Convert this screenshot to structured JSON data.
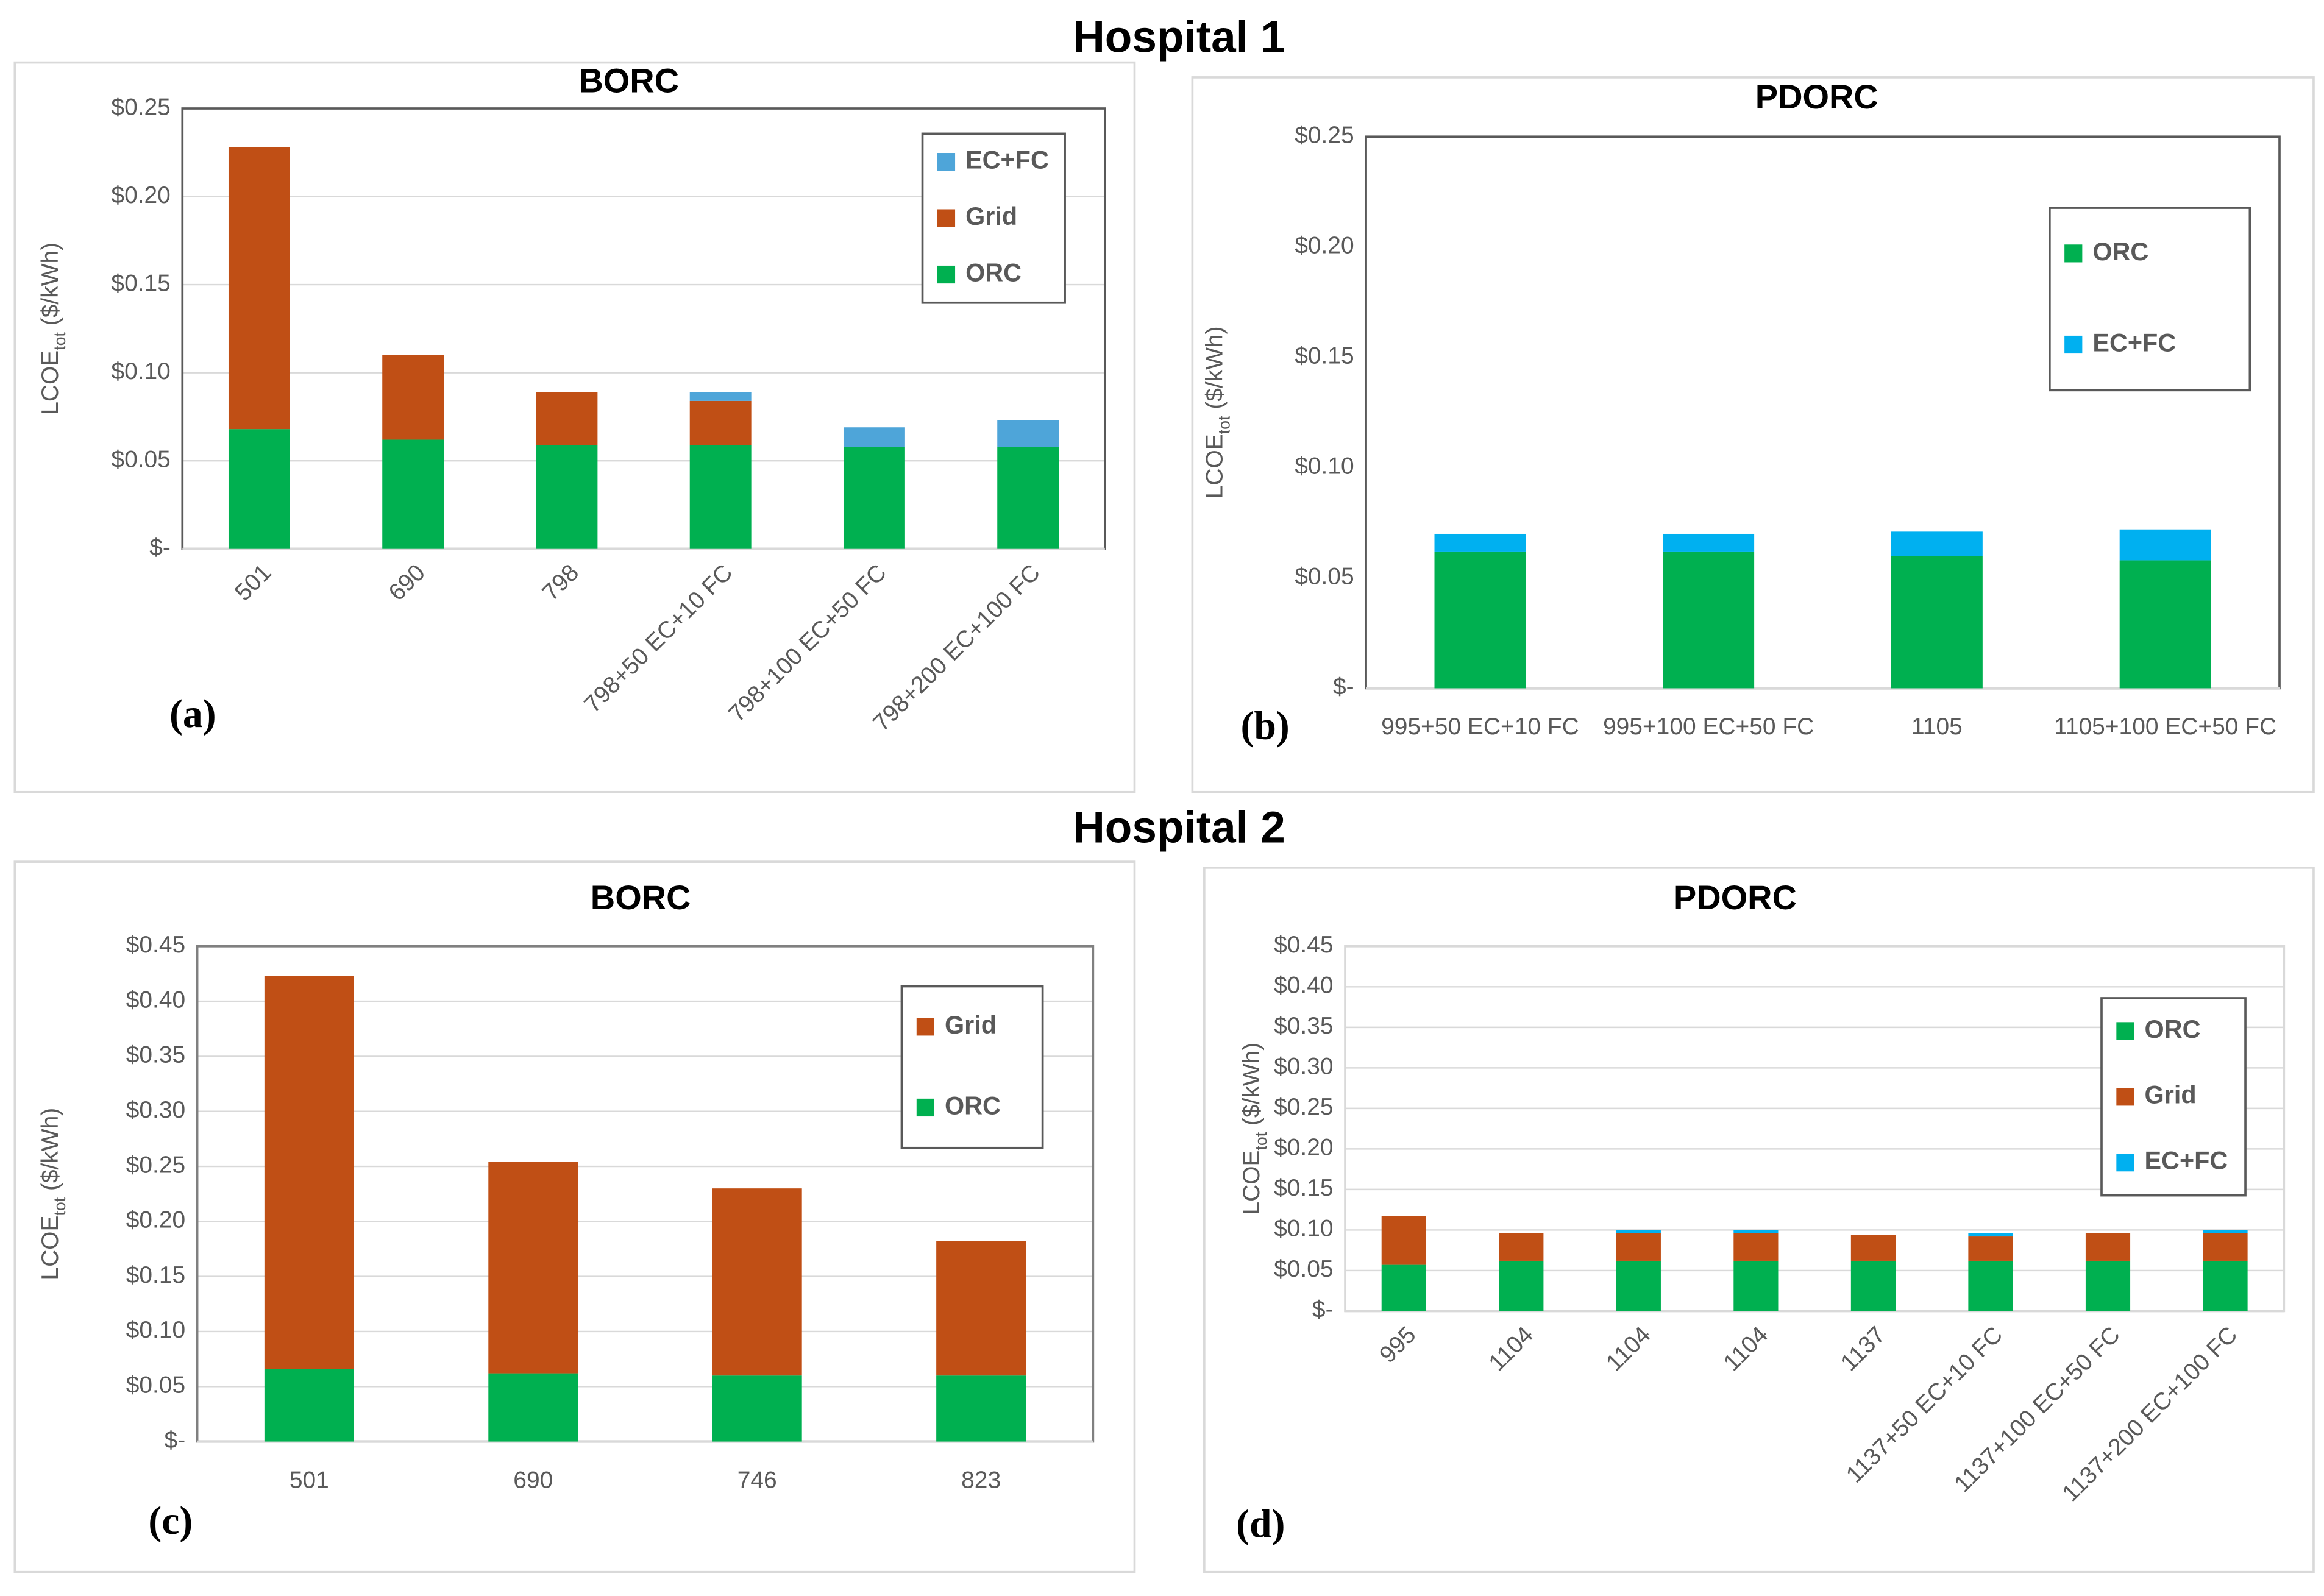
{
  "headings": [
    "Hospital 1",
    "Hospital 2"
  ],
  "chart_data": [
    {
      "type": "bar",
      "title": "BORC",
      "panel": "(a)",
      "ylabel": [
        "LCOE",
        "tot",
        " ($/kWh)"
      ],
      "categories": [
        "501",
        "690",
        "798",
        "798+50 EC+10 FC",
        "798+100 EC+50 FC",
        "798+200 EC+100 FC"
      ],
      "series": [
        {
          "name": "ORC",
          "color": "#00b050",
          "values": [
            0.068,
            0.062,
            0.059,
            0.059,
            0.058,
            0.058
          ]
        },
        {
          "name": "Grid",
          "color": "#c04f15",
          "values": [
            0.16,
            0.048,
            0.03,
            0.025,
            0,
            0
          ]
        },
        {
          "name": "EC+FC",
          "color": "#4ea5d9",
          "values": [
            0,
            0,
            0,
            0.005,
            0.011,
            0.015
          ]
        }
      ],
      "ylim": [
        0,
        0.25
      ],
      "yticks": [
        {
          "value": 0,
          "label": "$-"
        },
        {
          "value": 0.05,
          "label": "$0.05"
        },
        {
          "value": 0.1,
          "label": "$0.10"
        },
        {
          "value": 0.15,
          "label": "$0.15"
        },
        {
          "value": 0.2,
          "label": "$0.20"
        },
        {
          "value": 0.25,
          "label": "$0.25"
        }
      ],
      "grid": true,
      "legend_reversed": true,
      "legend": "upper right"
    },
    {
      "type": "bar",
      "title": "PDORC",
      "panel": "(b)",
      "ylabel": [
        "LCOE",
        "tot",
        " ($/kWh)"
      ],
      "categories": [
        "995+50 EC+10 FC",
        "995+100 EC+50 FC",
        "1105",
        "1105+100 EC+50 FC"
      ],
      "series": [
        {
          "name": "ORC",
          "color": "#00b050",
          "values": [
            0.062,
            0.062,
            0.06,
            0.058
          ]
        },
        {
          "name": "EC+FC",
          "color": "#00b0f0",
          "values": [
            0.008,
            0.008,
            0.011,
            0.014
          ]
        }
      ],
      "ylim": [
        0,
        0.25
      ],
      "yticks": [
        {
          "value": 0,
          "label": "$-"
        },
        {
          "value": 0.05,
          "label": "$0.05"
        },
        {
          "value": 0.1,
          "label": "$0.10"
        },
        {
          "value": 0.15,
          "label": "$0.15"
        },
        {
          "value": 0.2,
          "label": "$0.20"
        },
        {
          "value": 0.25,
          "label": "$0.25"
        }
      ],
      "grid": false,
      "legend_reversed": false,
      "legend": "upper right"
    },
    {
      "type": "bar",
      "title": "BORC",
      "panel": "(c)",
      "ylabel": [
        "LCOE",
        "tot",
        " ($/kWh)"
      ],
      "categories": [
        "501",
        "690",
        "746",
        "823"
      ],
      "series": [
        {
          "name": "ORC",
          "color": "#00b050",
          "values": [
            0.066,
            0.062,
            0.06,
            0.06
          ]
        },
        {
          "name": "Grid",
          "color": "#c04f15",
          "values": [
            0.357,
            0.192,
            0.17,
            0.122
          ]
        }
      ],
      "ylim": [
        0,
        0.45
      ],
      "yticks": [
        {
          "value": 0,
          "label": "$-"
        },
        {
          "value": 0.05,
          "label": "$0.05"
        },
        {
          "value": 0.1,
          "label": "$0.10"
        },
        {
          "value": 0.15,
          "label": "$0.15"
        },
        {
          "value": 0.2,
          "label": "$0.20"
        },
        {
          "value": 0.25,
          "label": "$0.25"
        },
        {
          "value": 0.3,
          "label": "$0.30"
        },
        {
          "value": 0.35,
          "label": "$0.35"
        },
        {
          "value": 0.4,
          "label": "$0.40"
        },
        {
          "value": 0.45,
          "label": "$0.45"
        }
      ],
      "grid": true,
      "legend_reversed": true,
      "legend": "upper right"
    },
    {
      "type": "bar",
      "title": "PDORC",
      "panel": "(d)",
      "ylabel": [
        "LCOE",
        "tot",
        " ($/kWh)"
      ],
      "categories": [
        "995",
        "1104",
        "1104",
        "1104",
        "1137",
        "1137+50 EC+10 FC",
        "1137+100 EC+50 FC",
        "1137+200 EC+100 FC"
      ],
      "series": [
        {
          "name": "ORC",
          "color": "#00b050",
          "values": [
            0.057,
            0.062,
            0.062,
            0.062,
            0.062,
            0.062,
            0.062,
            0.062
          ]
        },
        {
          "name": "Grid",
          "color": "#c04f15",
          "values": [
            0.06,
            0.034,
            0.034,
            0.034,
            0.032,
            0.03,
            0.034,
            0.034
          ]
        },
        {
          "name": "EC+FC",
          "color": "#00b0f0",
          "values": [
            0,
            0,
            0.004,
            0.004,
            0,
            0.004,
            0,
            0.004
          ]
        }
      ],
      "ylim": [
        0,
        0.45
      ],
      "yticks": [
        {
          "value": 0,
          "label": "$-"
        },
        {
          "value": 0.05,
          "label": "$0.05"
        },
        {
          "value": 0.1,
          "label": "$0.10"
        },
        {
          "value": 0.15,
          "label": "$0.15"
        },
        {
          "value": 0.2,
          "label": "$0.20"
        },
        {
          "value": 0.25,
          "label": "$0.25"
        },
        {
          "value": 0.3,
          "label": "$0.30"
        },
        {
          "value": 0.35,
          "label": "$0.35"
        },
        {
          "value": 0.4,
          "label": "$0.40"
        },
        {
          "value": 0.45,
          "label": "$0.45"
        }
      ],
      "grid": true,
      "legend_reversed": false,
      "legend": "upper right"
    }
  ]
}
